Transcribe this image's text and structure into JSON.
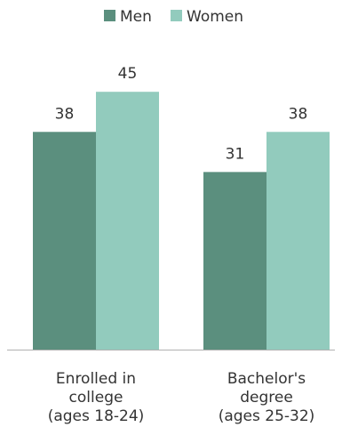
{
  "chart_data": {
    "type": "bar",
    "categories": [
      [
        "Enrolled in",
        "college",
        "(ages 18-24)"
      ],
      [
        "Bachelor's",
        "degree",
        "(ages 25-32)"
      ]
    ],
    "series": [
      {
        "name": "Men",
        "values": [
          38,
          31
        ],
        "color": "#5b8f7e"
      },
      {
        "name": "Women",
        "values": [
          45,
          38
        ],
        "color": "#92cbbd"
      }
    ],
    "ylim": [
      0,
      50
    ],
    "grid": false,
    "legend": "top-center",
    "data_labels": true
  },
  "colors": {
    "axis": "#b0b0b0",
    "text": "#333333"
  }
}
